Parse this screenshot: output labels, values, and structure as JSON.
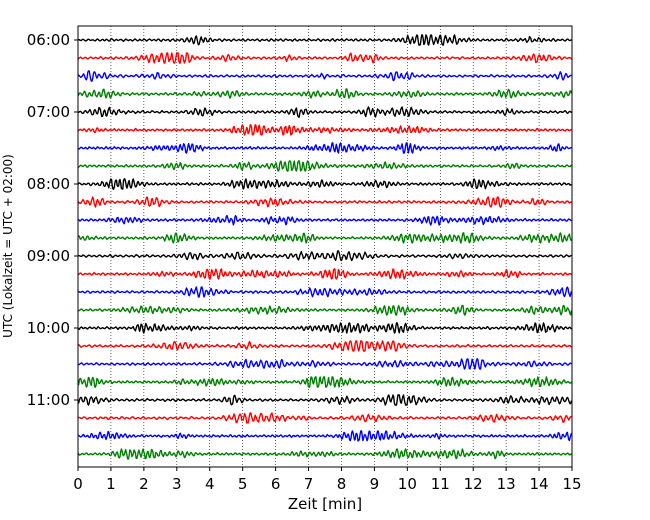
{
  "chart_data": {
    "type": "line",
    "title": "",
    "xlabel": "Zeit  [min]",
    "ylabel": "UTC (Lokalzeit = UTC + 02:00)",
    "xlim": [
      0,
      15
    ],
    "x_ticks": [
      0,
      1,
      2,
      3,
      4,
      5,
      6,
      7,
      8,
      9,
      10,
      11,
      12,
      13,
      14,
      15
    ],
    "x_tick_labels": [
      "0",
      "1",
      "2",
      "3",
      "4",
      "5",
      "6",
      "7",
      "8",
      "9",
      "10",
      "11",
      "12",
      "13",
      "14",
      "15"
    ],
    "y_tick_labels": [
      "06:00",
      "07:00",
      "08:00",
      "09:00",
      "10:00",
      "11:00"
    ],
    "grid": "vertical dotted at each minute",
    "legend": "none",
    "series_colors": [
      "#000000",
      "#ff0000",
      "#0000ff",
      "#008000"
    ],
    "rows": [
      {
        "start_utc": "06:00",
        "color": "#000000"
      },
      {
        "start_utc": "06:15",
        "color": "#ff0000"
      },
      {
        "start_utc": "06:30",
        "color": "#0000ff"
      },
      {
        "start_utc": "06:45",
        "color": "#008000"
      },
      {
        "start_utc": "07:00",
        "color": "#000000"
      },
      {
        "start_utc": "07:15",
        "color": "#ff0000"
      },
      {
        "start_utc": "07:30",
        "color": "#0000ff"
      },
      {
        "start_utc": "07:45",
        "color": "#008000"
      },
      {
        "start_utc": "08:00",
        "color": "#000000"
      },
      {
        "start_utc": "08:15",
        "color": "#ff0000"
      },
      {
        "start_utc": "08:30",
        "color": "#0000ff"
      },
      {
        "start_utc": "08:45",
        "color": "#008000"
      },
      {
        "start_utc": "09:00",
        "color": "#000000"
      },
      {
        "start_utc": "09:15",
        "color": "#ff0000"
      },
      {
        "start_utc": "09:30",
        "color": "#0000ff"
      },
      {
        "start_utc": "09:45",
        "color": "#008000"
      },
      {
        "start_utc": "10:00",
        "color": "#000000"
      },
      {
        "start_utc": "10:15",
        "color": "#ff0000"
      },
      {
        "start_utc": "10:30",
        "color": "#0000ff"
      },
      {
        "start_utc": "10:45",
        "color": "#008000"
      },
      {
        "start_utc": "11:00",
        "color": "#000000"
      },
      {
        "start_utc": "11:15",
        "color": "#ff0000"
      },
      {
        "start_utc": "11:30",
        "color": "#0000ff"
      },
      {
        "start_utc": "11:45",
        "color": "#008000"
      }
    ]
  }
}
